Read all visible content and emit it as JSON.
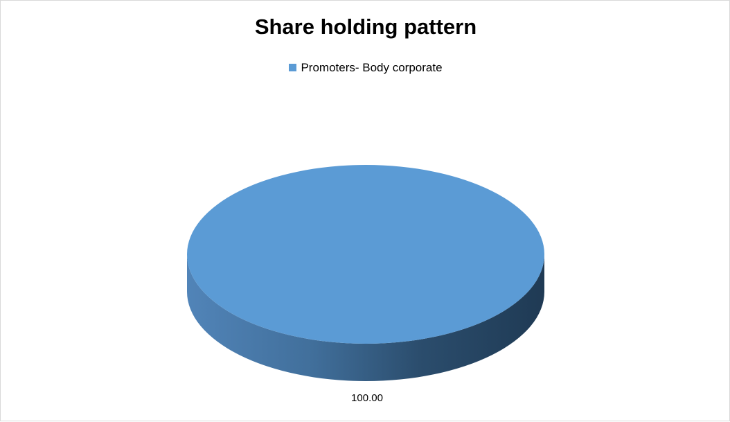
{
  "chart_data": {
    "type": "pie",
    "title": "Share holding pattern",
    "style": "3d",
    "legend_position": "top",
    "categories": [
      "Promoters- Body corporate"
    ],
    "values": [
      100.0
    ],
    "data_labels": [
      "100.00"
    ],
    "colors": [
      "#5b9bd5"
    ]
  }
}
